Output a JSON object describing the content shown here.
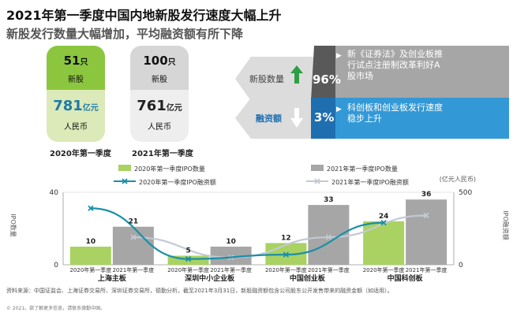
{
  "title": "2021年第一季度中国内地新股发行速度大幅上升",
  "subtitle": "新股发行数量大幅增加，平均融资额有所下降",
  "cards": [
    {
      "ipo_count": "51",
      "count_unit": "只",
      "ipo_label": "新股",
      "amount": "781",
      "amount_unit": "亿元",
      "currency": "人民币",
      "period": "2020年第一季度"
    },
    {
      "ipo_count": "100",
      "count_unit": "只",
      "ipo_label": "新股",
      "amount": "761",
      "amount_unit": "亿元",
      "currency": "人民币",
      "period": "2021年第一季度"
    }
  ],
  "changes": [
    {
      "label": "新股数量",
      "pct": "96%",
      "direction": "up",
      "note": [
        "新《证券法》及创业板推",
        "行试点注册制改革利好A",
        "股市场"
      ]
    },
    {
      "label": "融资额",
      "pct": "3%",
      "direction": "down",
      "note": [
        "科创板和创业板发行速度",
        "稳步上升"
      ]
    }
  ],
  "colors": {
    "green": "#8cc63f",
    "grey": "#a6a6a6",
    "teal_line": "#1b8fa8",
    "grey_line": "#c3c9d3",
    "blue": "#3399d6"
  },
  "chart_data": {
    "type": "bar",
    "categories": [
      "上海主板",
      "深圳中小企业板",
      "中国创业板",
      "中国科创板"
    ],
    "category_sublabels": [
      "2020年第一季度",
      "2021年第一季度"
    ],
    "series": [
      {
        "name": "2020年第一季度IPO数量",
        "kind": "bar",
        "axis": "left",
        "color": "#a9d262",
        "values": [
          10,
          5,
          12,
          24
        ]
      },
      {
        "name": "2021年第一季度IPO数量",
        "kind": "bar",
        "axis": "left",
        "color": "#a6a6a6",
        "values": [
          21,
          10,
          33,
          36
        ]
      },
      {
        "name": "2020年第一季度IPO融资额",
        "kind": "line",
        "axis": "right",
        "color": "#1b8fa8",
        "values": [
          390,
          40,
          70,
          290
        ]
      },
      {
        "name": "2021年第一季度IPO融资额",
        "kind": "line",
        "axis": "right",
        "color": "#c3c9d3",
        "values": [
          190,
          50,
          190,
          340
        ]
      }
    ],
    "ylabel": "IPO数量",
    "ylabel_right": "IPO融资额",
    "right_unit": "(亿元人民币)",
    "ylim": [
      0,
      40
    ],
    "ylim_right": [
      0,
      500
    ],
    "yticks": [
      0,
      40
    ],
    "yticks_right": [
      0,
      500
    ],
    "legend_position": "top"
  },
  "source": "资料来源：中国证监会、上海证券交易所、深圳证券交易所，德勤分析，截至2021年3月31日，新股融资额包含公司股东公开发售带来的融资金额（如适用）。",
  "copyright": "© 2021。欲了解更多信息，请联系德勤中国。"
}
